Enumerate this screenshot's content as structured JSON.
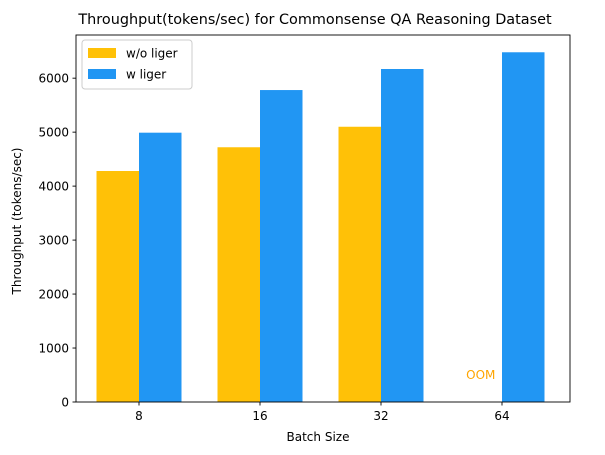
{
  "chart_data": {
    "type": "bar",
    "title": "Throughput(tokens/sec) for Commonsense QA Reasoning Dataset",
    "xlabel": "Batch Size",
    "ylabel": "Throughput (tokens/sec)",
    "categories": [
      "8",
      "16",
      "32",
      "64"
    ],
    "series": [
      {
        "name": "w/o liger",
        "color": "#FFC107",
        "values": [
          4280,
          4720,
          5100,
          null
        ]
      },
      {
        "name": "w liger",
        "color": "#2196F3",
        "values": [
          4990,
          5780,
          6170,
          6480
        ]
      }
    ],
    "ylim": [
      0,
      6800
    ],
    "yticks": [
      0,
      1000,
      2000,
      3000,
      4000,
      5000,
      6000
    ],
    "grid": false,
    "legend": "top-left",
    "annotations": [
      {
        "text": "OOM",
        "category": "64",
        "y": 500,
        "color": "#FFA500"
      }
    ]
  }
}
